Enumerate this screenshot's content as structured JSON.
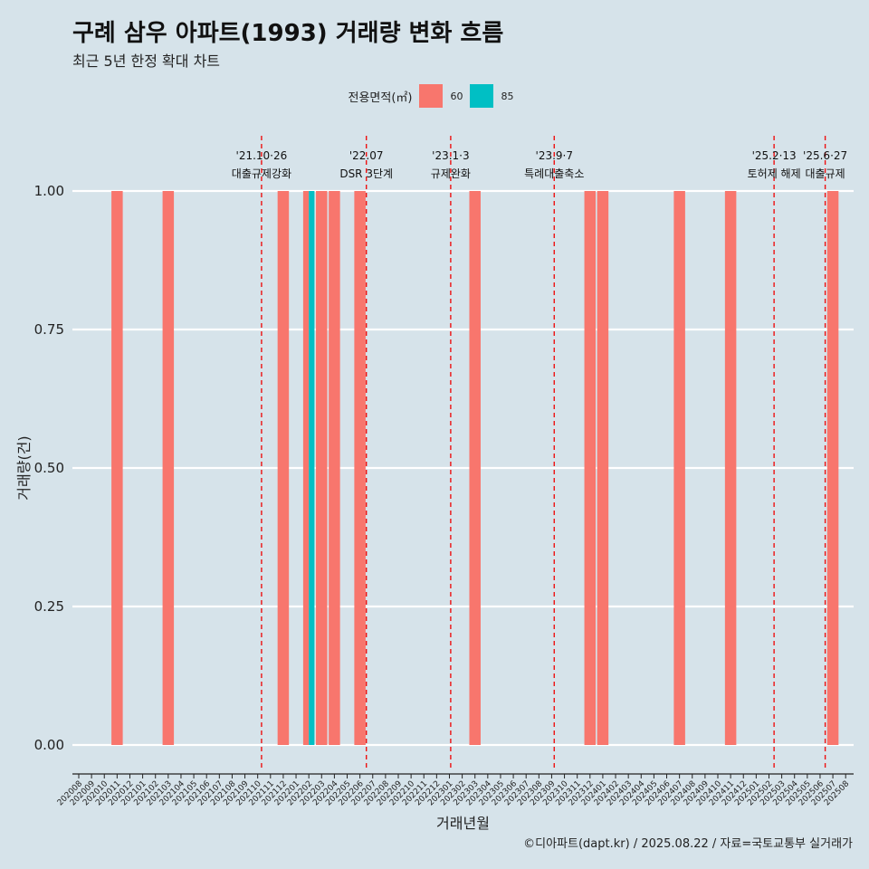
{
  "title": "구례 삼우 아파트(1993) 거래량 변화 흐름",
  "subtitle": "최근 5년 한정 확대 차트",
  "caption": "©디아파트(dapt.kr) / 2025.08.22 / 자료=국토교통부 실거래가",
  "legend": {
    "title": "전용면적(㎡)",
    "items": [
      {
        "label": "60",
        "color": "#f8766d"
      },
      {
        "label": "85",
        "color": "#00bfc4"
      }
    ]
  },
  "chart_data": {
    "type": "bar",
    "xlabel": "거래년월",
    "ylabel": "거래량(건)",
    "ylim": [
      0,
      1
    ],
    "yticks": [
      "0.00",
      "0.25",
      "0.50",
      "0.75",
      "1.00"
    ],
    "categories": [
      "202008",
      "202009",
      "202010",
      "202011",
      "202012",
      "202101",
      "202102",
      "202103",
      "202104",
      "202105",
      "202106",
      "202107",
      "202108",
      "202109",
      "202110",
      "202111",
      "202112",
      "202201",
      "202202",
      "202203",
      "202204",
      "202205",
      "202206",
      "202207",
      "202208",
      "202209",
      "202210",
      "202211",
      "202212",
      "202301",
      "202302",
      "202303",
      "202304",
      "202305",
      "202306",
      "202307",
      "202308",
      "202309",
      "202310",
      "202311",
      "202312",
      "202401",
      "202402",
      "202403",
      "202404",
      "202405",
      "202406",
      "202407",
      "202408",
      "202409",
      "202410",
      "202411",
      "202412",
      "202501",
      "202502",
      "202503",
      "202504",
      "202505",
      "202506",
      "202507",
      "202508"
    ],
    "series": [
      {
        "name": "60",
        "color": "#f8766d",
        "values": [
          0,
          0,
          0,
          1,
          0,
          0,
          0,
          1,
          0,
          0,
          0,
          0,
          0,
          0,
          0,
          0,
          1,
          0,
          1,
          1,
          1,
          0,
          1,
          0,
          0,
          0,
          0,
          0,
          0,
          0,
          0,
          1,
          0,
          0,
          0,
          0,
          0,
          0,
          0,
          0,
          1,
          1,
          0,
          0,
          0,
          0,
          0,
          1,
          0,
          0,
          0,
          1,
          0,
          0,
          0,
          0,
          0,
          0,
          0,
          1,
          0
        ]
      },
      {
        "name": "85",
        "color": "#00bfc4",
        "values": [
          0,
          0,
          0,
          0,
          0,
          0,
          0,
          0,
          0,
          0,
          0,
          0,
          0,
          0,
          0,
          0,
          0,
          0,
          1,
          0,
          0,
          0,
          0,
          0,
          0,
          0,
          0,
          0,
          0,
          0,
          0,
          0,
          0,
          0,
          0,
          0,
          0,
          0,
          0,
          0,
          0,
          0,
          0,
          0,
          0,
          0,
          0,
          0,
          0,
          0,
          0,
          0,
          0,
          0,
          0,
          0,
          0,
          0,
          0,
          0,
          0
        ]
      }
    ],
    "annotations": [
      {
        "month": "202110",
        "offset": 0.3,
        "date": "'21.10·26",
        "label": "대출규제강화"
      },
      {
        "month": "202207",
        "offset": -0.5,
        "date": "'22.07",
        "label": "DSR 3단계"
      },
      {
        "month": "202301",
        "offset": 0.1,
        "date": "'23.1·3",
        "label": "규제완화"
      },
      {
        "month": "202309",
        "offset": 0.2,
        "date": "'23.9·7",
        "label": "특례대출축소"
      },
      {
        "month": "202502",
        "offset": 0.4,
        "date": "'25.2·13",
        "label": "토허제 해제"
      },
      {
        "month": "202506",
        "offset": 0.4,
        "date": "'25.6·27",
        "label": "대출규제"
      }
    ]
  }
}
